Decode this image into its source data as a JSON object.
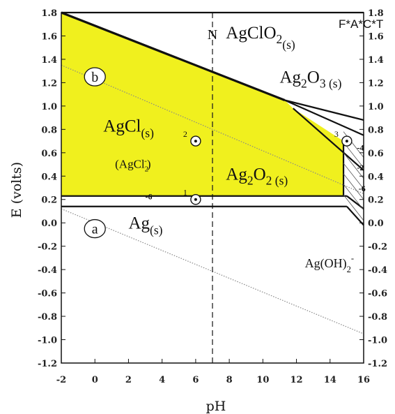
{
  "chart_data": {
    "type": "area",
    "title": "",
    "xlabel": "pH",
    "ylabel": "E (volts)",
    "xlim": [
      -2,
      16
    ],
    "ylim": [
      -1.2,
      1.8
    ],
    "x_ticks": [
      "-2",
      "0",
      "2",
      "4",
      "6",
      "8",
      "10",
      "12",
      "14",
      "16"
    ],
    "y_ticks": [
      "1.8",
      "1.6",
      "1.4",
      "1.2",
      "1.0",
      "0.8",
      "0.6",
      "0.4",
      "0.2",
      "0.0",
      "-0.2",
      "-0.4",
      "-0.6",
      "-0.8",
      "-1.0",
      "-1.2"
    ],
    "watermark": "F*A*C*T",
    "colors": {
      "stable_region": "#f0f01e",
      "lines": "#111111",
      "dotted": "#888888"
    },
    "stable_region": {
      "name": "AgCl / Ag2O2 stability field",
      "polygon": [
        [
          -2,
          1.8
        ],
        [
          11.3,
          1.05
        ],
        [
          11.8,
          0.98
        ],
        [
          14.8,
          0.7
        ],
        [
          14.8,
          0.23
        ],
        [
          -2,
          0.23
        ]
      ]
    },
    "boundaries": [
      {
        "x": [
          -2,
          11.3
        ],
        "y": [
          1.8,
          1.05
        ]
      },
      {
        "x": [
          11.3,
          16
        ],
        "y": [
          1.05,
          0.88
        ]
      },
      {
        "x": [
          11.3,
          16
        ],
        "y": [
          1.05,
          0.75
        ]
      },
      {
        "x": [
          11.8,
          16
        ],
        "y": [
          0.98,
          0.45
        ]
      },
      {
        "x": [
          -2,
          15
        ],
        "y": [
          0.23,
          0.23
        ]
      },
      {
        "x": [
          -2,
          15
        ],
        "y": [
          0.14,
          0.14
        ]
      },
      {
        "x": [
          15,
          16
        ],
        "y": [
          0.23,
          0.12
        ]
      },
      {
        "x": [
          15,
          16
        ],
        "y": [
          0.14,
          -0.02
        ]
      },
      {
        "x": [
          14.8,
          14.8
        ],
        "y": [
          0.23,
          0.7
        ]
      },
      {
        "x": [
          -2,
          16
        ],
        "y": [
          1.8,
          1.8
        ]
      }
    ],
    "water_lines": [
      {
        "name": "b",
        "x": [
          -2,
          16
        ],
        "y": [
          1.35,
          0.25
        ]
      },
      {
        "name": "a",
        "x": [
          -2,
          16
        ],
        "y": [
          0.12,
          -0.95
        ]
      }
    ],
    "neutral_line": {
      "x": 7,
      "label": "N"
    },
    "regions": [
      {
        "label": "AgClO",
        "sub1": "2",
        "sub2": "(s)",
        "x": 7.8,
        "y": 1.58
      },
      {
        "label": "Ag",
        "sub1": "2",
        "mid": "O",
        "sub2": "3 (s)",
        "x": 11.0,
        "y": 1.2
      },
      {
        "label": "AgCl",
        "sub2": "(s)",
        "x": 0.5,
        "y": 0.78
      },
      {
        "label": "Ag",
        "sub1": "2",
        "mid": "O",
        "sub2": "2 (s)",
        "x": 7.8,
        "y": 0.37
      },
      {
        "label": "Ag",
        "sub2": "(s)",
        "x": 2.0,
        "y": -0.05
      },
      {
        "label": "Ag(OH)",
        "sub1": "2",
        "sup": "-",
        "x": 12.5,
        "y": -0.38
      }
    ],
    "annotations": [
      {
        "text": "(AgCl",
        "sub": "2",
        "sup": "-",
        "close": ")",
        "x": 1.2,
        "y": 0.47
      }
    ],
    "circled_labels": [
      {
        "text": "b",
        "x": 0.0,
        "y": 1.25
      },
      {
        "text": "a",
        "x": 0.0,
        "y": -0.05
      }
    ],
    "points": [
      {
        "x": 6.0,
        "y": 0.7,
        "label": "2"
      },
      {
        "x": 6.0,
        "y": 0.2,
        "label": "1"
      },
      {
        "x": 15.0,
        "y": 0.7,
        "label": "3"
      }
    ],
    "small_numbers": [
      {
        "text": "-6",
        "x": 3.0,
        "y": 0.2
      },
      {
        "text": "-2",
        "x": 15.6,
        "y": 0.45
      },
      {
        "text": "-4",
        "x": 15.6,
        "y": 0.62
      },
      {
        "text": "-6",
        "x": 15.7,
        "y": 0.27
      }
    ]
  }
}
